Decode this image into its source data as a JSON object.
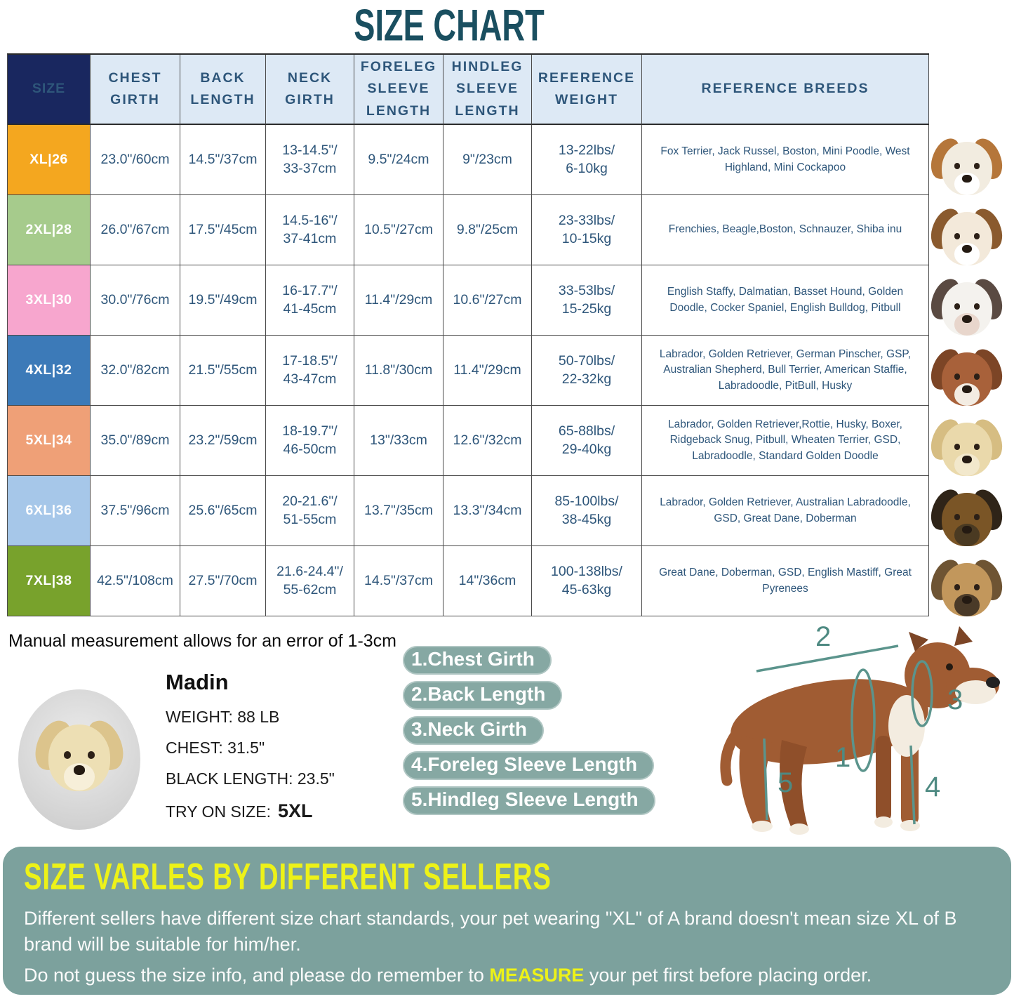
{
  "title": "SIZE CHART",
  "table": {
    "headers": [
      "SIZE",
      "CHEST\nGIRTH",
      "BACK\nLENGTH",
      "NECK\nGIRTH",
      "FORELEG\nSLEEVE\nLENGTH",
      "HINDLEG\nSLEEVE\nLENGTH",
      "REFERENCE\nWEIGHT",
      "REFERENCE BREEDS"
    ],
    "rows": [
      {
        "size": "XL|26",
        "color": "#f4a71f",
        "chest": "23.0\"/60cm",
        "back": "14.5\"/37cm",
        "neck": "13-14.5\"/\n33-37cm",
        "foreleg": "9.5\"/24cm",
        "hindleg": "9\"/23cm",
        "weight": "13-22lbs/\n6-10kg",
        "breeds": "Fox Terrier, Jack Russel, Boston, Mini Poodle, West Highland, Mini Cockapoo",
        "photo": {
          "name": "jack-russell-photo",
          "fur": "#f2ece0",
          "ear": "#b5763a",
          "snout": "#ffffff"
        }
      },
      {
        "size": "2XL|28",
        "color": "#a6cb8c",
        "chest": "26.0\"/67cm",
        "back": "17.5\"/45cm",
        "neck": "14.5-16\"/\n37-41cm",
        "foreleg": "10.5\"/27cm",
        "hindleg": "9.8\"/25cm",
        "weight": "23-33lbs/\n10-15kg",
        "breeds": "Frenchies, Beagle,Boston, Schnauzer, Shiba inu",
        "photo": {
          "name": "beagle-photo",
          "fur": "#f3e9da",
          "ear": "#8a5a2e",
          "snout": "#ffffff"
        }
      },
      {
        "size": "3XL|30",
        "color": "#f7a6ce",
        "chest": "30.0\"/76cm",
        "back": "19.5\"/49cm",
        "neck": "16-17.7\"/\n41-45cm",
        "foreleg": "11.4\"/29cm",
        "hindleg": "10.6\"/27cm",
        "weight": "33-53lbs/\n15-25kg",
        "breeds": "English Staffy, Dalmatian, Basset Hound, Golden Doodle, Cocker Spaniel, English Bulldog, Pitbull",
        "photo": {
          "name": "dalmatian-photo",
          "fur": "#f4f2ee",
          "ear": "#5a4a42",
          "snout": "#e8d6cc"
        }
      },
      {
        "size": "4XL|32",
        "color": "#3c7ab8",
        "chest": "32.0\"/82cm",
        "back": "21.5\"/55cm",
        "neck": "17-18.5\"/\n43-47cm",
        "foreleg": "11.8\"/30cm",
        "hindleg": "11.4\"/29cm",
        "weight": "50-70lbs/\n22-32kg",
        "breeds": "Labrador, Golden Retriever, German Pinscher, GSP, Australian Shepherd, Bull Terrier, American Staffie, Labradoodle, PitBull, Husky",
        "photo": {
          "name": "amstaff-photo",
          "fur": "#a8613a",
          "ear": "#7c4526",
          "snout": "#f3ece2"
        }
      },
      {
        "size": "5XL|34",
        "color": "#efa077",
        "chest": "35.0\"/89cm",
        "back": "23.2\"/59cm",
        "neck": "18-19.7\"/\n46-50cm",
        "foreleg": "13\"/33cm",
        "hindleg": "12.6\"/32cm",
        "weight": "65-88lbs/\n29-40kg",
        "breeds": "Labrador, Golden Retriever,Rottie, Husky, Boxer, Ridgeback Snug, Pitbull, Wheaten Terrier, GSD, Labradoodle, Standard Golden Doodle",
        "photo": {
          "name": "labrador-photo",
          "fur": "#ead9ab",
          "ear": "#d6bd82",
          "snout": "#f2e8cc"
        }
      },
      {
        "size": "6XL|36",
        "color": "#a6c7e9",
        "chest": "37.5\"/96cm",
        "back": "25.6\"/65cm",
        "neck": "20-21.6\"/\n51-55cm",
        "foreleg": "13.7\"/35cm",
        "hindleg": "13.3\"/34cm",
        "weight": "85-100lbs/\n38-45kg",
        "breeds": "Labrador, Golden Retriever, Australian Labradoodle, GSD, Great Dane, Doberman",
        "photo": {
          "name": "german-shepherd-photo",
          "fur": "#7a5526",
          "ear": "#2f2418",
          "snout": "#4a3a22"
        }
      },
      {
        "size": "7XL|38",
        "color": "#78a22c",
        "chest": "42.5\"/108cm",
        "back": "27.5\"/70cm",
        "neck": "21.6-24.4\"/\n55-62cm",
        "foreleg": "14.5\"/37cm",
        "hindleg": "14\"/36cm",
        "weight": "100-138lbs/\n45-63kg",
        "breeds": "Great Dane, Doberman, GSD, English Mastiff, Great Pyrenees",
        "photo": {
          "name": "great-dane-photo",
          "fur": "#c2975c",
          "ear": "#6e5433",
          "snout": "#4a3a28"
        }
      }
    ]
  },
  "measurement_note": "Manual measurement allows for an error of 1-3cm",
  "model_dog": {
    "name": "Madin",
    "weight": "WEIGHT: 88 LB",
    "chest": "CHEST: 31.5\"",
    "back_length": "BLACK LENGTH: 23.5\"",
    "try_on_label": "TRY ON SIZE:",
    "try_on_size": "5XL"
  },
  "measure_labels": [
    "1.Chest Girth",
    "2.Back Length",
    "3.Neck Girth",
    "4.Foreleg Sleeve Length",
    "5.Hindleg Sleeve Length"
  ],
  "diagram": {
    "numbers": [
      "1",
      "2",
      "3",
      "4",
      "5"
    ]
  },
  "seller_note": {
    "heading": "SIZE VARLES BY DIFFERENT SELLERS",
    "body1": "Different sellers have different size chart standards, your pet wearing \"XL\" of A brand doesn't mean size XL of B brand will be suitable for him/her.",
    "body2_before": "Do not guess the size info, and please do remember to ",
    "body2_highlight": "MEASURE",
    "body2_after": " your pet first before placing order."
  },
  "colors": {
    "title": "#1a4f60",
    "header_bg": "#dde9f5",
    "header_text": "#3a6ca3",
    "size_header_bg": "#19275f",
    "value_text": "#2e567a",
    "pill_bg": "#86a8a3",
    "band_bg": "#7ca19d",
    "highlight_yellow": "#edf218",
    "diagram_line": "#5b948c"
  }
}
